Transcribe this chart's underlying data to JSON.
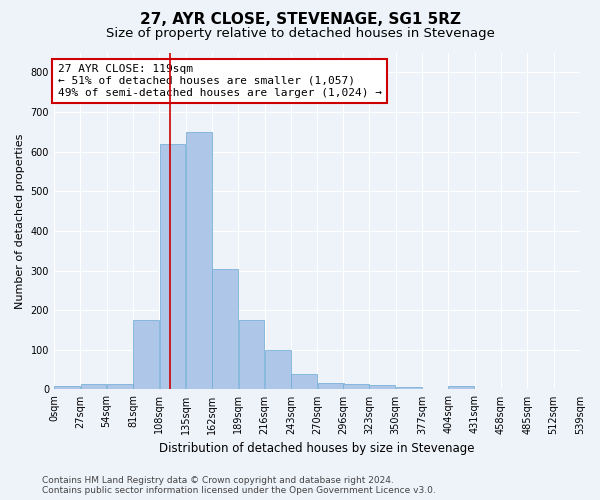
{
  "title": "27, AYR CLOSE, STEVENAGE, SG1 5RZ",
  "subtitle": "Size of property relative to detached houses in Stevenage",
  "xlabel": "Distribution of detached houses by size in Stevenage",
  "ylabel": "Number of detached properties",
  "bar_edges": [
    0,
    27,
    54,
    81,
    108,
    135,
    162,
    189,
    216,
    243,
    270,
    296,
    323,
    350,
    377,
    404,
    431,
    458,
    485,
    512,
    539
  ],
  "bar_heights": [
    8,
    13,
    13,
    175,
    618,
    650,
    305,
    175,
    100,
    40,
    15,
    13,
    10,
    5,
    0,
    8,
    0,
    0,
    0,
    0
  ],
  "bar_color": "#aec6e8",
  "bar_edge_color": "#6aaad4",
  "property_size": 119,
  "vline_color": "#cc0000",
  "annotation_text": "27 AYR CLOSE: 119sqm\n← 51% of detached houses are smaller (1,057)\n49% of semi-detached houses are larger (1,024) →",
  "annotation_box_color": "white",
  "annotation_box_edge_color": "#cc0000",
  "ylim": [
    0,
    850
  ],
  "yticks": [
    0,
    100,
    200,
    300,
    400,
    500,
    600,
    700,
    800
  ],
  "xlim": [
    0,
    539
  ],
  "background_color": "#eef2f9",
  "grid_color": "white",
  "footer_line1": "Contains HM Land Registry data © Crown copyright and database right 2024.",
  "footer_line2": "Contains public sector information licensed under the Open Government Licence v3.0.",
  "title_fontsize": 11,
  "subtitle_fontsize": 9.5,
  "xlabel_fontsize": 8.5,
  "ylabel_fontsize": 8,
  "tick_fontsize": 7,
  "annotation_fontsize": 8,
  "footer_fontsize": 6.5
}
